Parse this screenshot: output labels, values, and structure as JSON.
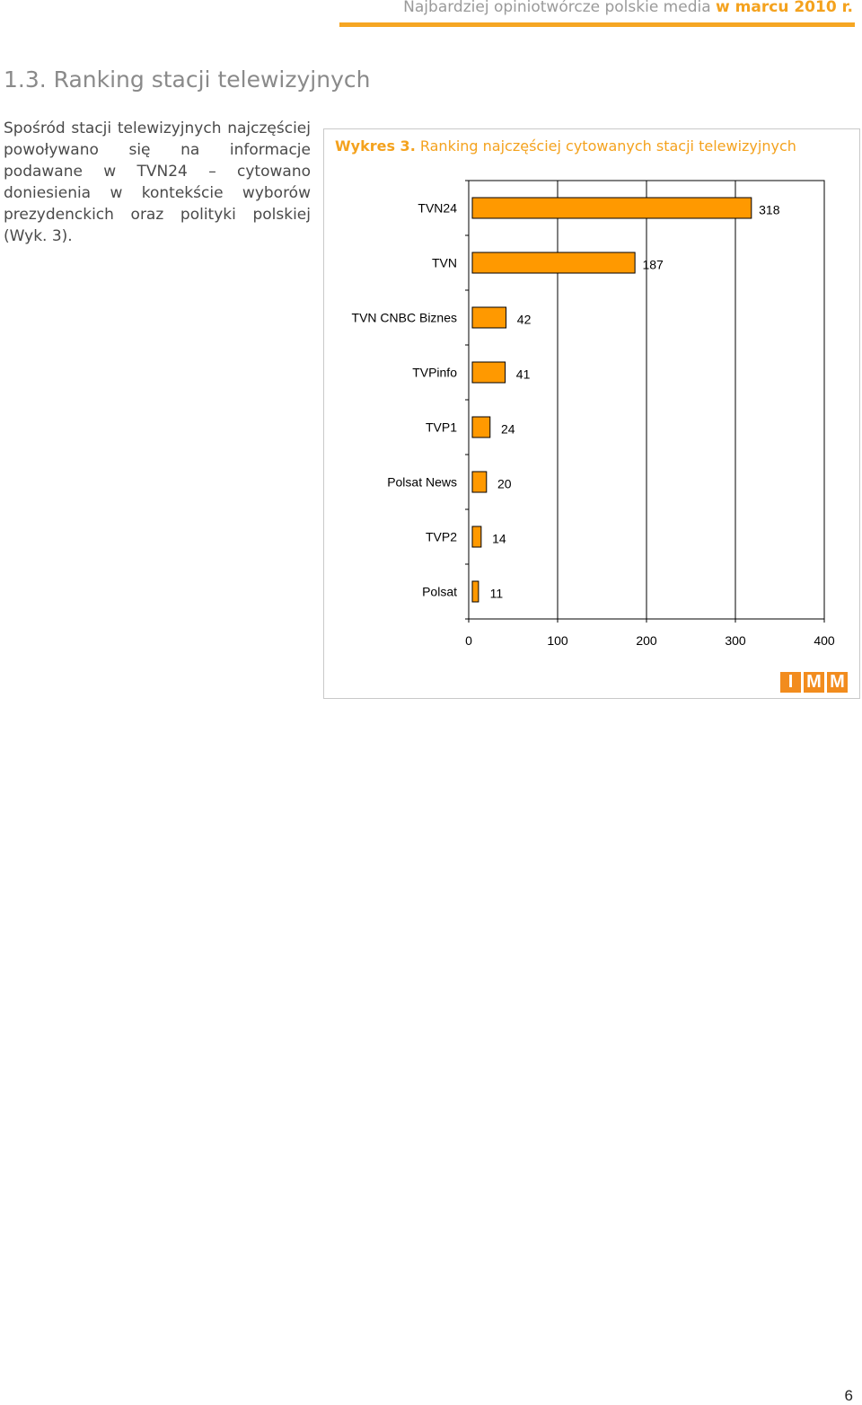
{
  "header": {
    "title_main": "Najbardziej opiniotwórcze polskie media ",
    "title_accent": "w marcu 2010 r."
  },
  "section": {
    "title": "1.3. Ranking stacji telewizyjnych",
    "intro": "Spośród stacji telewizyjnych najczęściej powoływano się na informacje podawane w TVN24 – cytowano doniesienia w kontekście wyborów prezydenckich oraz polityki polskiej (Wyk. 3)."
  },
  "chart_caption": {
    "label": "Wykres 3.",
    "text": " Ranking najczęściej cytowanych stacji telewizyjnych"
  },
  "chart_data": {
    "type": "bar",
    "orientation": "horizontal",
    "categories": [
      "TVN24",
      "TVN",
      "TVN CNBC Biznes",
      "TVPinfo",
      "TVP1",
      "Polsat News",
      "TVP2",
      "Polsat"
    ],
    "values": [
      318,
      187,
      42,
      41,
      24,
      20,
      14,
      11
    ],
    "xlim": [
      0,
      400
    ],
    "x_ticks": [
      "0",
      "100",
      "200",
      "300",
      "400"
    ],
    "grid": true,
    "bar_color": "#ff9900"
  },
  "logo": {
    "letters": [
      "I",
      "M",
      "M"
    ]
  },
  "footer": {
    "page_number": "6"
  }
}
